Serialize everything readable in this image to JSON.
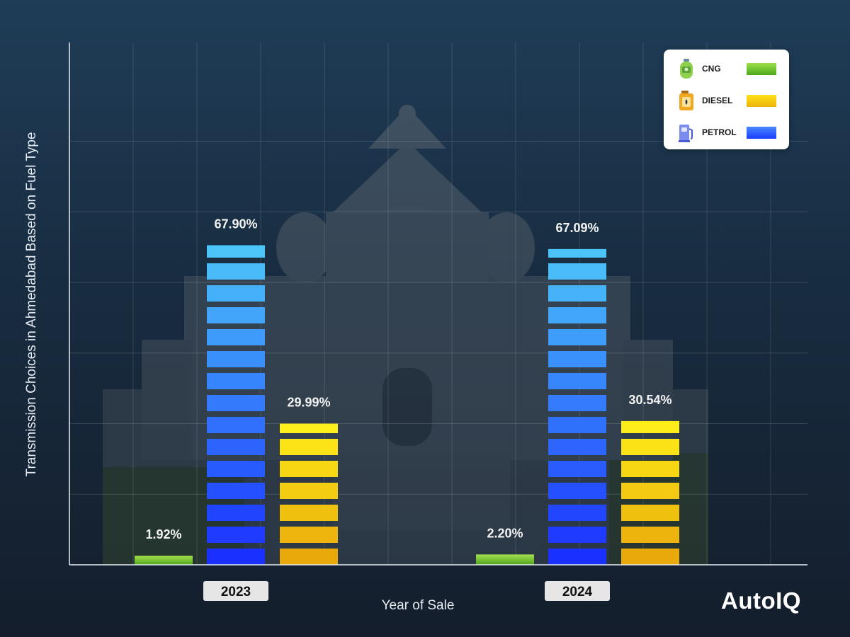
{
  "chart_data": {
    "type": "bar",
    "title": "",
    "xlabel": "Year of Sale",
    "ylabel": "Transmission Choices in Ahmedabad Based on Fuel Type",
    "categories": [
      "2023",
      "2024"
    ],
    "ylim": [
      0,
      100
    ],
    "grid": true,
    "legend_position": "top-right",
    "series": [
      {
        "name": "CNG",
        "values": [
          1.92,
          2.2
        ],
        "labels": [
          "1.92%",
          "2.20%"
        ],
        "color": "#6cc42a"
      },
      {
        "name": "PETROL",
        "values": [
          67.9,
          67.09
        ],
        "labels": [
          "67.90%",
          "67.09%"
        ],
        "color": "#2b6cff"
      },
      {
        "name": "DIESEL",
        "values": [
          29.99,
          30.54
        ],
        "labels": [
          "29.99%",
          "30.54%"
        ],
        "color": "#f4cc10"
      }
    ]
  },
  "legend": {
    "items": [
      {
        "label": "CNG",
        "icon": "cng-cylinder-icon",
        "color": "#6cc42a"
      },
      {
        "label": "DIESEL",
        "icon": "diesel-jerrycan-icon",
        "color": "#f4cc10"
      },
      {
        "label": "PETROL",
        "icon": "petrol-pump-icon",
        "color": "#2b6cff"
      }
    ]
  },
  "brand": "AutoIQ",
  "colors": {
    "background": "#182c40",
    "petrol_top": "#4cc4f9",
    "petrol_bottom": "#1a30ff",
    "diesel_top": "#fff01a",
    "diesel_bottom": "#e9a90a",
    "cng": "#6cc42a",
    "category_pill": "#e6e6e6"
  }
}
